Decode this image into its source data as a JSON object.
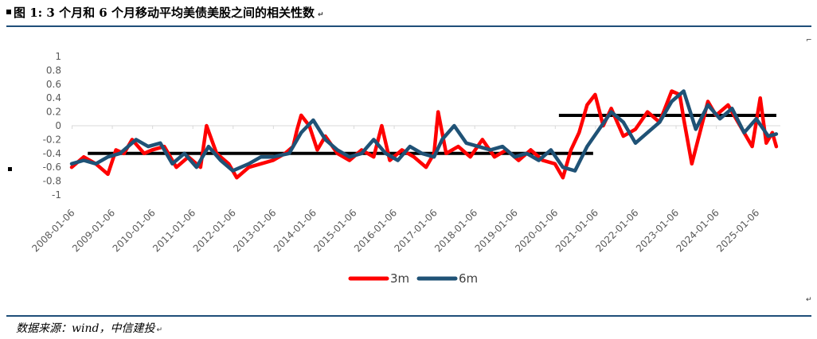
{
  "title": "图 1: 3 个月和 6 个月移动平均美债美股之间的相关性数",
  "source": "数据来源：wind，中信建投",
  "chart_data": {
    "type": "line",
    "title": "图 1: 3 个月和 6 个月移动平均美债美股之间的相关性数",
    "xlabel": "",
    "ylabel": "",
    "ylim": [
      -1,
      1
    ],
    "yticks": [
      "1",
      "0.8",
      "0.6",
      "0.4",
      "0.2",
      "0",
      "-0.2",
      "-0.4",
      "-0.6",
      "-0.8",
      "-1"
    ],
    "xticks": [
      "2008-01-06",
      "2009-01-06",
      "2010-01-06",
      "2011-01-06",
      "2012-01-06",
      "2013-01-06",
      "2014-01-06",
      "2015-01-06",
      "2016-01-06",
      "2017-01-06",
      "2018-01-06",
      "2019-01-06",
      "2020-01-06",
      "2021-01-06",
      "2022-01-06",
      "2023-01-06",
      "2024-01-06",
      "2025-01-06"
    ],
    "x_range": [
      2008.0,
      2025.6
    ],
    "grid": false,
    "legend_position": "bottom",
    "series": [
      {
        "name": "3m",
        "color": "#ff0000",
        "x": [
          2008.0,
          2008.3,
          2008.6,
          2008.9,
          2009.1,
          2009.3,
          2009.5,
          2009.8,
          2010.0,
          2010.3,
          2010.6,
          2010.9,
          2011.2,
          2011.35,
          2011.6,
          2011.9,
          2012.1,
          2012.4,
          2012.7,
          2013.0,
          2013.3,
          2013.5,
          2013.6,
          2013.7,
          2013.9,
          2014.1,
          2014.3,
          2014.6,
          2014.9,
          2015.2,
          2015.5,
          2015.7,
          2015.9,
          2016.2,
          2016.5,
          2016.8,
          2017.0,
          2017.1,
          2017.3,
          2017.6,
          2017.9,
          2018.2,
          2018.5,
          2018.8,
          2019.1,
          2019.4,
          2019.7,
          2020.0,
          2020.2,
          2020.4,
          2020.6,
          2020.8,
          2021.0,
          2021.2,
          2021.4,
          2021.7,
          2022.0,
          2022.3,
          2022.6,
          2022.9,
          2023.1,
          2023.2,
          2023.4,
          2023.6,
          2023.8,
          2024.0,
          2024.3,
          2024.6,
          2024.9,
          2025.1,
          2025.25,
          2025.4,
          2025.5
        ],
        "y": [
          -0.6,
          -0.45,
          -0.55,
          -0.7,
          -0.35,
          -0.4,
          -0.2,
          -0.4,
          -0.35,
          -0.3,
          -0.6,
          -0.45,
          -0.6,
          0.0,
          -0.4,
          -0.55,
          -0.75,
          -0.6,
          -0.55,
          -0.5,
          -0.4,
          -0.3,
          -0.05,
          0.15,
          0.0,
          -0.35,
          -0.15,
          -0.4,
          -0.5,
          -0.35,
          -0.45,
          0.0,
          -0.5,
          -0.35,
          -0.45,
          -0.6,
          -0.4,
          0.2,
          -0.4,
          -0.3,
          -0.45,
          -0.2,
          -0.45,
          -0.35,
          -0.5,
          -0.35,
          -0.5,
          -0.55,
          -0.75,
          -0.35,
          -0.1,
          0.3,
          0.45,
          0.0,
          0.25,
          -0.15,
          -0.05,
          0.2,
          0.05,
          0.5,
          0.45,
          0.1,
          -0.55,
          -0.1,
          0.35,
          0.15,
          0.3,
          0.0,
          -0.3,
          0.4,
          -0.25,
          -0.1,
          -0.3
        ]
      },
      {
        "name": "6m",
        "color": "#1f5276",
        "x": [
          2008.0,
          2008.3,
          2008.6,
          2008.9,
          2009.2,
          2009.6,
          2009.9,
          2010.2,
          2010.5,
          2010.8,
          2011.1,
          2011.4,
          2011.7,
          2012.0,
          2012.4,
          2012.7,
          2013.0,
          2013.4,
          2013.7,
          2014.0,
          2014.3,
          2014.6,
          2014.9,
          2015.2,
          2015.5,
          2015.8,
          2016.1,
          2016.4,
          2016.7,
          2017.0,
          2017.2,
          2017.5,
          2017.8,
          2018.1,
          2018.4,
          2018.7,
          2019.0,
          2019.3,
          2019.6,
          2019.9,
          2020.2,
          2020.5,
          2020.8,
          2021.1,
          2021.4,
          2021.7,
          2022.0,
          2022.3,
          2022.6,
          2022.9,
          2023.2,
          2023.5,
          2023.8,
          2024.1,
          2024.4,
          2024.7,
          2025.0,
          2025.3,
          2025.5
        ],
        "y": [
          -0.55,
          -0.5,
          -0.55,
          -0.45,
          -0.4,
          -0.2,
          -0.3,
          -0.25,
          -0.55,
          -0.4,
          -0.6,
          -0.3,
          -0.5,
          -0.65,
          -0.55,
          -0.45,
          -0.45,
          -0.4,
          -0.1,
          0.08,
          -0.2,
          -0.35,
          -0.45,
          -0.4,
          -0.2,
          -0.4,
          -0.5,
          -0.3,
          -0.4,
          -0.45,
          -0.2,
          0.0,
          -0.25,
          -0.3,
          -0.35,
          -0.3,
          -0.45,
          -0.4,
          -0.5,
          -0.35,
          -0.6,
          -0.65,
          -0.3,
          -0.05,
          0.2,
          0.05,
          -0.25,
          -0.1,
          0.05,
          0.35,
          0.5,
          -0.05,
          0.3,
          0.1,
          0.25,
          -0.1,
          0.1,
          -0.15,
          -0.12
        ]
      }
    ],
    "reference_lines": [
      {
        "x_range": [
          2008.4,
          2020.95
        ],
        "y": -0.4,
        "color": "#000000"
      },
      {
        "x_range": [
          2020.1,
          2025.5
        ],
        "y": 0.15,
        "color": "#000000"
      }
    ]
  }
}
